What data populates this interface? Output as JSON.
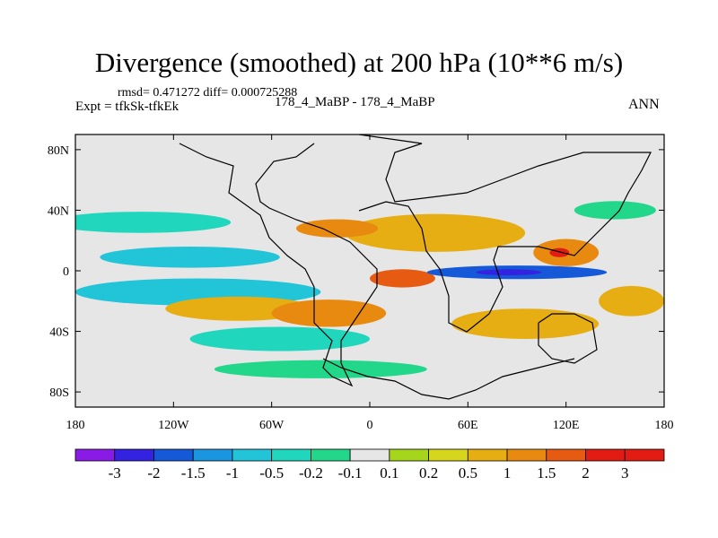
{
  "header": {
    "title": "Divergence (smoothed) at 200 hPa (10**6 m/s)",
    "stats": "rmsd= 0.471272 diff= 0.000725288",
    "expt": "Expt = tfkSk-tfkEk",
    "case": "178_4_MaBP - 178_4_MaBP",
    "season": "ANN"
  },
  "chart_data": {
    "type": "heatmap",
    "title": "Divergence (smoothed) at 200 hPa (10**6 m/s)",
    "x_range": [
      -180,
      180
    ],
    "y_range": [
      -90,
      90
    ],
    "xticks": [
      {
        "value": -180,
        "label": "180"
      },
      {
        "value": -120,
        "label": "120W"
      },
      {
        "value": -60,
        "label": "60W"
      },
      {
        "value": 0,
        "label": "0"
      },
      {
        "value": 60,
        "label": "60E"
      },
      {
        "value": 120,
        "label": "120E"
      },
      {
        "value": 180,
        "label": "180"
      }
    ],
    "yticks": [
      {
        "value": 80,
        "label": "80N"
      },
      {
        "value": 40,
        "label": "40N"
      },
      {
        "value": 0,
        "label": "0"
      },
      {
        "value": -40,
        "label": "40S"
      },
      {
        "value": -80,
        "label": "80S"
      }
    ],
    "colorbar": {
      "labels": [
        "-3",
        "-2",
        "-1.5",
        "-1",
        "-0.5",
        "-0.2",
        "-0.1",
        "0.1",
        "0.2",
        "0.5",
        "1",
        "1.5",
        "2",
        "3"
      ],
      "colors": [
        "#8a1be6",
        "#3322e0",
        "#1659d8",
        "#1a96e0",
        "#22c4d8",
        "#20d6bd",
        "#22d68a",
        "#e6e6e6",
        "#a6d61c",
        "#d6d61c",
        "#e6ae12",
        "#e88a10",
        "#e65a12",
        "#e21c12",
        "#e21c12"
      ]
    },
    "features": [
      {
        "name": "eq-south-band",
        "lon": -105,
        "lat": -14,
        "w": 150,
        "h": 18,
        "value": -1
      },
      {
        "name": "eq-north-band",
        "lon": -110,
        "lat": 9,
        "w": 110,
        "h": 14,
        "value": -1
      },
      {
        "name": "north-band",
        "lon": -140,
        "lat": 32,
        "w": 110,
        "h": 14,
        "value": -0.5
      },
      {
        "name": "sh-pacific-pos",
        "lon": -80,
        "lat": -25,
        "w": 90,
        "h": 16,
        "value": 0.5
      },
      {
        "name": "sh-atlantic-pos",
        "lon": -25,
        "lat": -28,
        "w": 70,
        "h": 18,
        "value": 1
      },
      {
        "name": "sh-minus-band",
        "lon": -55,
        "lat": -45,
        "w": 110,
        "h": 16,
        "value": -0.5
      },
      {
        "name": "africa-center",
        "lon": 20,
        "lat": -5,
        "w": 40,
        "h": 12,
        "value": 1.5
      },
      {
        "name": "nh-eurasia-pos",
        "lon": 40,
        "lat": 25,
        "w": 110,
        "h": 25,
        "value": 0.5
      },
      {
        "name": "nh-atlantic-pos",
        "lon": -20,
        "lat": 28,
        "w": 50,
        "h": 12,
        "value": 1
      },
      {
        "name": "indo-pacific-neg",
        "lon": 90,
        "lat": -1,
        "w": 110,
        "h": 9,
        "value": -2
      },
      {
        "name": "indo-pacific-core",
        "lon": 85,
        "lat": -1,
        "w": 40,
        "h": 4,
        "value": -3
      },
      {
        "name": "wpac-pos",
        "lon": 120,
        "lat": 12,
        "w": 40,
        "h": 18,
        "value": 1
      },
      {
        "name": "wpac-core",
        "lon": 116,
        "lat": 12,
        "w": 12,
        "h": 6,
        "value": 2
      },
      {
        "name": "south-indian-pos",
        "lon": 95,
        "lat": -35,
        "w": 90,
        "h": 20,
        "value": 0.5
      },
      {
        "name": "sh-high-neg",
        "lon": -30,
        "lat": -65,
        "w": 130,
        "h": 12,
        "value": -0.2
      },
      {
        "name": "nh-high-neg",
        "lon": 150,
        "lat": 40,
        "w": 50,
        "h": 12,
        "value": -0.2
      },
      {
        "name": "east-pac-pos",
        "lon": 160,
        "lat": -20,
        "w": 40,
        "h": 20,
        "value": 0.5
      }
    ]
  }
}
